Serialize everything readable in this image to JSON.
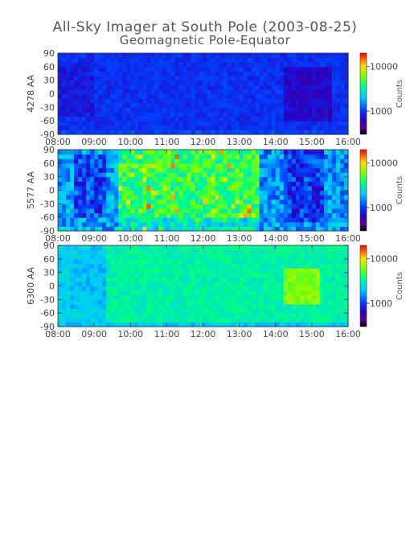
{
  "title": "All-Sky Imager at South Pole (2003-08-25)",
  "subtitle": "Geomagnetic Pole-Equator",
  "chart_data": [
    {
      "type": "heatmap",
      "ylabel": "4278 AA",
      "x_ticks": [
        "08:00",
        "09:00",
        "10:00",
        "11:00",
        "12:00",
        "13:00",
        "14:00",
        "15:00",
        "16:00"
      ],
      "y_ticks": [
        90,
        60,
        30,
        0,
        -30,
        -60,
        -90
      ],
      "ylim": [
        -90,
        90
      ],
      "xlim": [
        "08:00",
        "16:00"
      ],
      "colorbar": {
        "label": "Counts",
        "ticks": [
          10000,
          1000
        ],
        "scale": "log",
        "range": [
          300,
          20000
        ]
      },
      "description_level": "low (~1000 counts), mostly blue/purple"
    },
    {
      "type": "heatmap",
      "ylabel": "5577 AA",
      "x_ticks": [
        "08:00",
        "09:00",
        "10:00",
        "11:00",
        "12:00",
        "13:00",
        "14:00",
        "15:00",
        "16:00"
      ],
      "y_ticks": [
        90,
        60,
        30,
        0,
        -30,
        -60,
        -90
      ],
      "ylim": [
        -90,
        90
      ],
      "xlim": [
        "08:00",
        "16:00"
      ],
      "colorbar": {
        "label": "Counts",
        "ticks": [
          10000,
          1000
        ],
        "scale": "log",
        "range": [
          300,
          20000
        ]
      },
      "description_level": "high (~5000-15000 counts) 09:45-14:15, green/yellow/red"
    },
    {
      "type": "heatmap",
      "ylabel": "6300 AA",
      "x_ticks": [
        "08:00",
        "09:00",
        "10:00",
        "11:00",
        "12:00",
        "13:00",
        "14:00",
        "15:00",
        "16:00"
      ],
      "y_ticks": [
        90,
        60,
        30,
        0,
        -30,
        -60,
        -90
      ],
      "ylim": [
        -90,
        90
      ],
      "xlim": [
        "08:00",
        "16:00"
      ],
      "colorbar": {
        "label": "Counts",
        "ticks": [
          10000,
          1000
        ],
        "scale": "log",
        "range": [
          300,
          20000
        ]
      },
      "description_level": "moderate (~3000-8000 counts), green/cyan, yellow patch 14:30-15:30"
    }
  ]
}
